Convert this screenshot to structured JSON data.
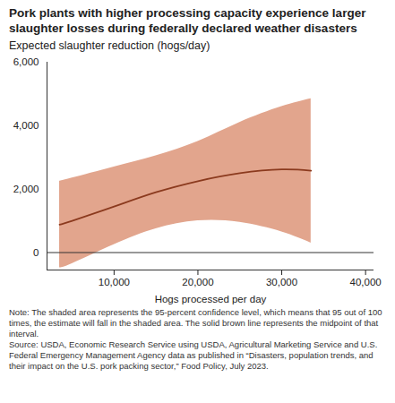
{
  "chart_data": {
    "type": "line",
    "title": "Pork plants with higher processing capacity experience larger slaughter losses during federally declared weather disasters",
    "subtitle": "Expected slaughter reduction (hogs/day)",
    "x_label": "Hogs processed per day",
    "note": "Note: The shaded area represents the 95-percent confidence level, which means that 95 out of 100 times, the estimate will fall in the shaded area. The solid brown line represents the midpoint of that interval.",
    "source": "Source: USDA, Economic Research Service using USDA, Agricultural Marketing Service and U.S. Federal Emergency Management Agency data as published in “Disasters, population trends, and their impact on the U.S. pork packing sector,” Food Policy, July 2023.",
    "x": [
      3500,
      5000,
      10000,
      15000,
      20000,
      25000,
      30000,
      33500
    ],
    "series": [
      {
        "color": "#8b3a1e",
        "values": [
          880,
          1000,
          1450,
          1900,
          2250,
          2500,
          2620,
          2580
        ],
        "lower": [
          -480,
          -350,
          250,
          750,
          1000,
          950,
          650,
          300
        ],
        "upper": [
          2250,
          2350,
          2700,
          3050,
          3500,
          4100,
          4600,
          4850
        ]
      }
    ],
    "xlim": [
      2000,
      41000
    ],
    "xticks": [
      {
        "value": 10000,
        "label": "10,000"
      },
      {
        "value": 20000,
        "label": "20,000"
      },
      {
        "value": 30000,
        "label": "30,000"
      },
      {
        "value": 40000,
        "label": "40,000"
      }
    ],
    "ylim": [
      -550,
      6000
    ],
    "yticks": [
      0,
      {
        "value": 2000,
        "label": "2,000"
      },
      {
        "value": 4000,
        "label": "4,000"
      },
      {
        "value": 6000,
        "label": "6,000"
      }
    ],
    "grid": false
  }
}
